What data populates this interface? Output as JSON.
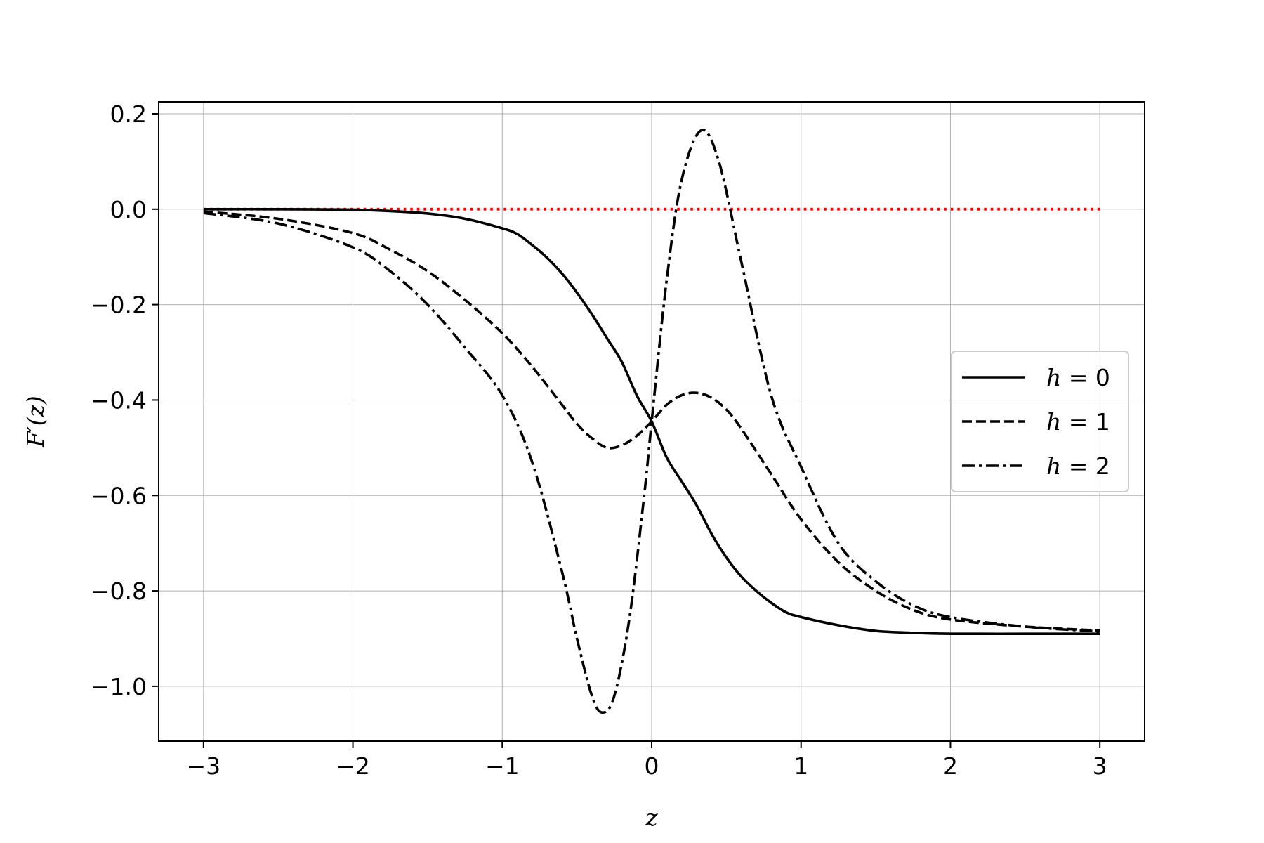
{
  "chart_data": {
    "type": "line",
    "title": "",
    "xlabel": "z",
    "ylabel": "F′(z)",
    "xlim": [
      -3.3,
      3.3
    ],
    "ylim": [
      -1.115,
      0.225
    ],
    "xticks": [
      -3,
      -2,
      -1,
      0,
      1,
      2,
      3
    ],
    "xtick_labels": [
      "−3",
      "−2",
      "−1",
      "0",
      "1",
      "2",
      "3"
    ],
    "yticks": [
      0.2,
      0.0,
      -0.2,
      -0.4,
      -0.6,
      -0.8,
      -1.0
    ],
    "ytick_labels": [
      "0.2",
      "0.0",
      "−0.2",
      "−0.4",
      "−0.6",
      "−0.8",
      "−1.0"
    ],
    "grid": true,
    "legend_position": "center-right",
    "series": [
      {
        "name": "h = 0",
        "label_parts": {
          "var": "h",
          "eq": " = ",
          "val": "0"
        },
        "style": "solid",
        "color": "#000000",
        "x": [
          -3.0,
          -2.5,
          -2.0,
          -1.75,
          -1.5,
          -1.25,
          -1.0,
          -0.9,
          -0.8,
          -0.7,
          -0.6,
          -0.5,
          -0.4,
          -0.3,
          -0.2,
          -0.1,
          0.0,
          0.1,
          0.2,
          0.3,
          0.4,
          0.5,
          0.6,
          0.7,
          0.8,
          0.9,
          1.0,
          1.25,
          1.5,
          1.75,
          2.0,
          2.5,
          3.0
        ],
        "y": [
          0.0,
          0.0,
          -0.001,
          -0.004,
          -0.009,
          -0.02,
          -0.04,
          -0.052,
          -0.075,
          -0.102,
          -0.135,
          -0.175,
          -0.22,
          -0.27,
          -0.32,
          -0.39,
          -0.445,
          -0.52,
          -0.57,
          -0.62,
          -0.68,
          -0.73,
          -0.77,
          -0.8,
          -0.825,
          -0.845,
          -0.855,
          -0.872,
          -0.884,
          -0.888,
          -0.89,
          -0.89,
          -0.89
        ]
      },
      {
        "name": "h = 1",
        "label_parts": {
          "var": "h",
          "eq": " = ",
          "val": "1"
        },
        "style": "dashed",
        "color": "#000000",
        "x": [
          -3.0,
          -2.5,
          -2.0,
          -1.75,
          -1.5,
          -1.25,
          -1.0,
          -0.8,
          -0.6,
          -0.5,
          -0.4,
          -0.3,
          -0.2,
          -0.1,
          0.0,
          0.1,
          0.2,
          0.3,
          0.4,
          0.5,
          0.6,
          0.8,
          1.0,
          1.25,
          1.5,
          1.75,
          2.0,
          2.5,
          3.0
        ],
        "y": [
          -0.005,
          -0.02,
          -0.05,
          -0.085,
          -0.13,
          -0.19,
          -0.26,
          -0.33,
          -0.41,
          -0.45,
          -0.48,
          -0.5,
          -0.495,
          -0.475,
          -0.445,
          -0.41,
          -0.39,
          -0.385,
          -0.395,
          -0.42,
          -0.46,
          -0.555,
          -0.65,
          -0.74,
          -0.8,
          -0.84,
          -0.86,
          -0.875,
          -0.883
        ]
      },
      {
        "name": "h = 2",
        "label_parts": {
          "var": "h",
          "eq": " = ",
          "val": "2"
        },
        "style": "dashdot",
        "color": "#000000",
        "x": [
          -3.0,
          -2.5,
          -2.0,
          -1.75,
          -1.5,
          -1.25,
          -1.0,
          -0.8,
          -0.6,
          -0.5,
          -0.4,
          -0.33,
          -0.25,
          -0.15,
          -0.05,
          0.0,
          0.1,
          0.2,
          0.33,
          0.45,
          0.6,
          0.8,
          1.0,
          1.25,
          1.5,
          1.75,
          2.0,
          2.5,
          3.0
        ],
        "y": [
          -0.008,
          -0.03,
          -0.08,
          -0.13,
          -0.2,
          -0.29,
          -0.39,
          -0.53,
          -0.76,
          -0.9,
          -1.02,
          -1.055,
          -1.02,
          -0.86,
          -0.6,
          -0.445,
          -0.15,
          0.06,
          0.165,
          0.1,
          -0.11,
          -0.39,
          -0.54,
          -0.7,
          -0.78,
          -0.83,
          -0.855,
          -0.875,
          -0.885
        ]
      },
      {
        "name": "",
        "style": "dotted",
        "color": "#ff0000",
        "x": [
          -3.0,
          3.0
        ],
        "y": [
          0.0,
          0.0
        ]
      }
    ]
  }
}
